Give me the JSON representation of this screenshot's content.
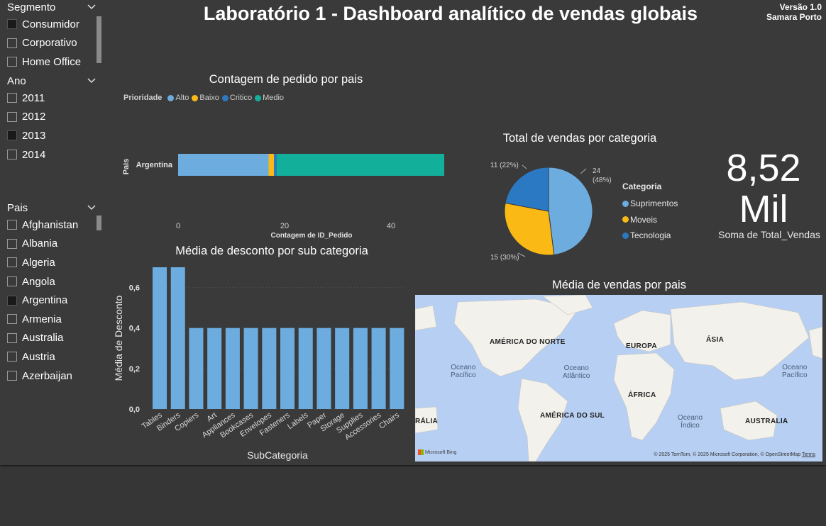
{
  "header": {
    "title": "Laboratório 1 - Dashboard analítico de vendas globais",
    "version": "Versão 1.0",
    "author": "Samara Porto"
  },
  "slicers": {
    "segmento": {
      "title": "Segmento",
      "items": [
        {
          "label": "Consumidor",
          "checked": true
        },
        {
          "label": "Corporativo",
          "checked": false
        },
        {
          "label": "Home Office",
          "checked": false
        }
      ]
    },
    "ano": {
      "title": "Ano",
      "items": [
        {
          "label": "2011",
          "checked": false
        },
        {
          "label": "2012",
          "checked": false
        },
        {
          "label": "2013",
          "checked": true
        },
        {
          "label": "2014",
          "checked": false
        }
      ]
    },
    "pais": {
      "title": "Pais",
      "items": [
        {
          "label": "Afghanistan",
          "checked": false
        },
        {
          "label": "Albania",
          "checked": false
        },
        {
          "label": "Algeria",
          "checked": false
        },
        {
          "label": "Angola",
          "checked": false
        },
        {
          "label": "Argentina",
          "checked": true
        },
        {
          "label": "Armenia",
          "checked": false
        },
        {
          "label": "Australia",
          "checked": false
        },
        {
          "label": "Austria",
          "checked": false
        },
        {
          "label": "Azerbaijan",
          "checked": false
        }
      ]
    }
  },
  "orders_chart": {
    "title": "Contagem de pedido por pais",
    "legend_title": "Prioridade",
    "ylabel": "Pais",
    "xlabel": "Contagem de ID_Pedido",
    "tick_0": "0",
    "tick_20": "20",
    "tick_40": "40"
  },
  "sales_pie": {
    "title": "Total de vendas por categoria",
    "legend_title": "Categoria",
    "label_suprimentos_a": "24",
    "label_suprimentos_b": "(48%)",
    "label_moveis": "15 (30%)",
    "label_tecnologia": "11 (22%)"
  },
  "kpi": {
    "value_line1": "8,52",
    "value_line2": "Mil",
    "label": "Soma de Total_Vendas"
  },
  "discount_chart": {
    "title": "Média de desconto por sub categoria",
    "ylabel": "Média de Desconto",
    "xlabel": "SubCategoria",
    "yticks": [
      "0,0",
      "0,2",
      "0,4",
      "0,6"
    ]
  },
  "map": {
    "title": "Média de vendas por pais",
    "labels": {
      "north_america": "AMÉRICA DO NORTE",
      "europe": "EUROPA",
      "asia": "ÁSIA",
      "africa": "ÁFRICA",
      "south_america": "AMÉRICA DO SUL",
      "australia": "AUSTRALIA",
      "australia_left": "RÁLIA",
      "pacific_l1": "Oceano",
      "pacific_l2": "Pacífico",
      "atlantic_l1": "Oceano",
      "atlantic_l2": "Atlântico",
      "pacific_r1": "Oceano",
      "pacific_r2": "Pacífico",
      "indian_l1": "Oceano",
      "indian_l2": "Índico"
    },
    "bing": "Microsoft Bing",
    "credit": "© 2025 TomTom, © 2025 Microsoft Corporation, © OpenStreetMap",
    "terms": "Terms"
  },
  "chart_data": [
    {
      "type": "bar",
      "orientation": "horizontal-stacked",
      "title": "Contagem de pedido por pais",
      "categories": [
        "Argentina"
      ],
      "series": [
        {
          "name": "Alto",
          "color": "#6cacdf",
          "values": [
            17
          ]
        },
        {
          "name": "Baixo",
          "color": "#fbb916",
          "values": [
            1
          ]
        },
        {
          "name": "Critico",
          "color": "#2a79c2",
          "values": [
            0.5
          ]
        },
        {
          "name": "Medio",
          "color": "#12b09a",
          "values": [
            31.5
          ]
        }
      ],
      "xlabel": "Contagem de ID_Pedido",
      "ylabel": "Pais",
      "xlim": [
        0,
        50
      ],
      "xticks": [
        0,
        20,
        40
      ],
      "legend": "top"
    },
    {
      "type": "pie",
      "title": "Total de vendas por categoria",
      "categories": [
        "Suprimentos",
        "Moveis",
        "Tecnologia"
      ],
      "values": [
        24,
        15,
        11
      ],
      "percent": [
        48,
        30,
        22
      ],
      "colors": [
        "#6cacdf",
        "#fbb916",
        "#2a79c2"
      ],
      "legend": "right"
    },
    {
      "type": "bar",
      "title": "Média de desconto por sub categoria",
      "categories": [
        "Tables",
        "Binders",
        "Copiers",
        "Art",
        "Appliances",
        "Bookcases",
        "Envelopes",
        "Fasteners",
        "Labels",
        "Paper",
        "Storage",
        "Supplies",
        "Accessories",
        "Chairs"
      ],
      "values": [
        0.7,
        0.7,
        0.4,
        0.4,
        0.4,
        0.4,
        0.4,
        0.4,
        0.4,
        0.4,
        0.4,
        0.4,
        0.4,
        0.4
      ],
      "color": "#6cacdf",
      "xlabel": "SubCategoria",
      "ylabel": "Média de Desconto",
      "ylim": [
        0,
        0.7
      ],
      "yticks": [
        0.0,
        0.2,
        0.4,
        0.6
      ],
      "grid": true
    }
  ]
}
